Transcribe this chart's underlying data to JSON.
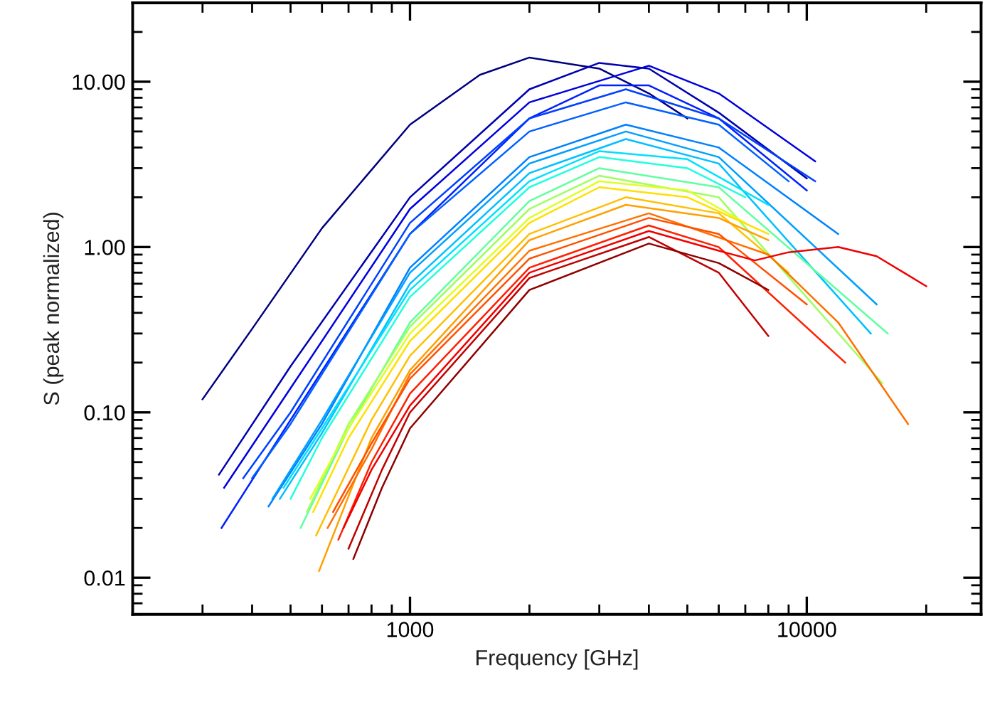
{
  "chart_data": {
    "type": "line",
    "xlabel": "Frequency [GHz]",
    "ylabel": "S (peak normalized)",
    "log": "xy",
    "xlim": [
      200,
      27500
    ],
    "ylim": [
      0.006,
      30
    ],
    "xticks": [
      1000,
      10000
    ],
    "yticks": [
      {
        "value": 0.01,
        "label": "0.01"
      },
      {
        "value": 0.1,
        "label": "0.10"
      },
      {
        "value": 1,
        "label": "1.00"
      },
      {
        "value": 10,
        "label": "10.00"
      }
    ],
    "series": [
      {
        "color": "#00007f",
        "x": [
          300,
          400,
          600,
          1000,
          1500,
          2000,
          3000,
          4000,
          5000
        ],
        "values": [
          0.12,
          0.32,
          1.3,
          5.5,
          11,
          14,
          12,
          8.5,
          6
        ]
      },
      {
        "color": "#0000b0",
        "x": [
          330,
          500,
          1000,
          2000,
          3000,
          4000,
          6000,
          10000
        ],
        "values": [
          0.042,
          0.19,
          2.0,
          9.0,
          13,
          12,
          6.5,
          2.6
        ]
      },
      {
        "color": "#0000e0",
        "x": [
          340,
          500,
          1000,
          2000,
          4000,
          6000,
          10500
        ],
        "values": [
          0.035,
          0.14,
          1.7,
          7.5,
          12.5,
          8.5,
          3.3
        ]
      },
      {
        "color": "#0020ff",
        "x": [
          335,
          500,
          1000,
          2000,
          3000,
          4000,
          6000,
          10000
        ],
        "values": [
          0.02,
          0.09,
          1.2,
          6,
          9.5,
          9.5,
          6,
          2.2
        ]
      },
      {
        "color": "#0040ff",
        "x": [
          380,
          500,
          1000,
          2000,
          3500,
          6000,
          10500
        ],
        "values": [
          0.04,
          0.1,
          1.4,
          6,
          9,
          6,
          2.5
        ]
      },
      {
        "color": "#0060ff",
        "x": [
          400,
          500,
          1000,
          2000,
          3500,
          6000,
          9000
        ],
        "values": [
          0.04,
          0.085,
          1.2,
          5,
          7.5,
          5.5,
          2.5
        ]
      },
      {
        "color": "#0080ff",
        "x": [
          440,
          600,
          1000,
          2000,
          3500,
          6000,
          12000
        ],
        "values": [
          0.027,
          0.085,
          0.75,
          3.5,
          5.5,
          4,
          1.2
        ]
      },
      {
        "color": "#00a0ff",
        "x": [
          450,
          600,
          1000,
          2000,
          3500,
          6000,
          15000
        ],
        "values": [
          0.03,
          0.09,
          0.7,
          3.2,
          5,
          3.5,
          0.45
        ]
      },
      {
        "color": "#00c0ff",
        "x": [
          470,
          600,
          1000,
          2000,
          3500,
          6000,
          14500
        ],
        "values": [
          0.03,
          0.075,
          0.6,
          2.8,
          4.5,
          3.2,
          0.3
        ]
      },
      {
        "color": "#00e0ff",
        "x": [
          480,
          600,
          1000,
          2000,
          3000,
          5000,
          8000
        ],
        "values": [
          0.035,
          0.08,
          0.55,
          2.5,
          3.8,
          3.4,
          1.8
        ]
      },
      {
        "color": "#20ffdf",
        "x": [
          500,
          600,
          1000,
          2000,
          3000,
          5000,
          7000
        ],
        "values": [
          0.03,
          0.07,
          0.5,
          2.3,
          3.5,
          3.0,
          2.0
        ]
      },
      {
        "color": "#60ff9f",
        "x": [
          530,
          700,
          1000,
          2000,
          3000,
          6000,
          16000
        ],
        "values": [
          0.02,
          0.08,
          0.35,
          1.9,
          3.0,
          2.3,
          0.3
        ]
      },
      {
        "color": "#a0ff60",
        "x": [
          550,
          700,
          1000,
          2000,
          3000,
          6000,
          15500
        ],
        "values": [
          0.025,
          0.085,
          0.33,
          1.7,
          2.7,
          2.0,
          0.15
        ]
      },
      {
        "color": "#dfff20",
        "x": [
          560,
          700,
          1000,
          2000,
          3000,
          5000,
          7000
        ],
        "values": [
          0.03,
          0.08,
          0.3,
          1.5,
          2.5,
          2.2,
          1.4
        ]
      },
      {
        "color": "#ffe000",
        "x": [
          570,
          700,
          1000,
          2000,
          3000,
          5000,
          8000
        ],
        "values": [
          0.025,
          0.07,
          0.27,
          1.4,
          2.3,
          2.0,
          1.2
        ]
      },
      {
        "color": "#ffc000",
        "x": [
          580,
          800,
          1000,
          2000,
          3500,
          6000,
          9000
        ],
        "values": [
          0.018,
          0.09,
          0.22,
          1.2,
          2.0,
          1.6,
          0.7
        ]
      },
      {
        "color": "#ffa000",
        "x": [
          590,
          800,
          1000,
          2000,
          3500,
          6000,
          8000
        ],
        "values": [
          0.011,
          0.07,
          0.18,
          1.1,
          1.8,
          1.5,
          1.1
        ]
      },
      {
        "color": "#ff7000",
        "x": [
          620,
          800,
          1000,
          2000,
          4000,
          8000,
          12000,
          18000
        ],
        "values": [
          0.02,
          0.06,
          0.17,
          0.95,
          1.6,
          0.9,
          0.35,
          0.085
        ]
      },
      {
        "color": "#ff5000",
        "x": [
          640,
          800,
          1000,
          2000,
          4000,
          6000,
          10000
        ],
        "values": [
          0.025,
          0.065,
          0.16,
          0.85,
          1.5,
          1.2,
          0.45
        ]
      },
      {
        "color": "#ff2000",
        "x": [
          660,
          800,
          1000,
          2000,
          4000,
          6000,
          12500
        ],
        "values": [
          0.017,
          0.05,
          0.13,
          0.75,
          1.35,
          1.0,
          0.2
        ]
      },
      {
        "color": "#f00000",
        "x": [
          680,
          800,
          1000,
          2000,
          4000,
          6000,
          7400,
          9000,
          12000,
          15000,
          20000
        ],
        "values": [
          0.02,
          0.045,
          0.11,
          0.7,
          1.25,
          0.95,
          0.83,
          0.93,
          1.0,
          0.88,
          0.58
        ]
      },
      {
        "color": "#c00000",
        "x": [
          700,
          850,
          1000,
          2000,
          4000,
          6000,
          8000
        ],
        "values": [
          0.015,
          0.045,
          0.1,
          0.65,
          1.15,
          0.7,
          0.29
        ]
      },
      {
        "color": "#8f0000",
        "x": [
          720,
          850,
          1000,
          2000,
          4000,
          6000,
          8000
        ],
        "values": [
          0.013,
          0.035,
          0.08,
          0.55,
          1.05,
          0.8,
          0.55
        ]
      }
    ]
  }
}
